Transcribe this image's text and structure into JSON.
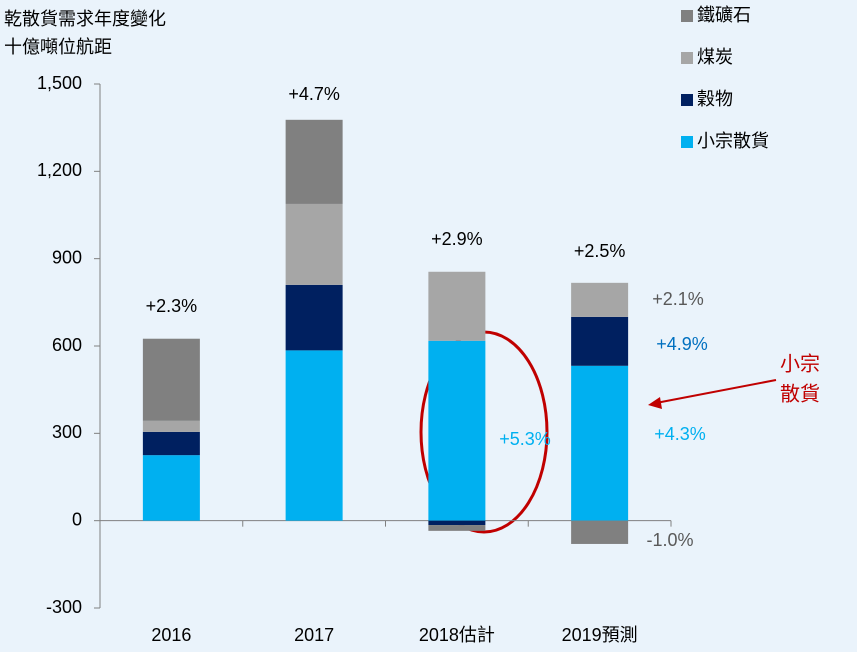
{
  "chart_data": {
    "type": "stacked_bar",
    "title": "乾散貨需求年度變化",
    "y_label": "十億噸位航距",
    "categories": [
      "2016",
      "2017",
      "2018估計",
      "2019預測"
    ],
    "series": [
      {
        "name": "小宗散貨",
        "color": "#00b0f0",
        "values": [
          225,
          585,
          618,
          532
        ]
      },
      {
        "name": "穀物",
        "color": "#002060",
        "values": [
          80,
          225,
          -15,
          168
        ]
      },
      {
        "name": "煤炭",
        "color": "#a6a6a6",
        "values": [
          38,
          278,
          237,
          117
        ]
      },
      {
        "name": "鐵礦石",
        "color": "#808080",
        "values": [
          282,
          289,
          -20,
          -80
        ]
      }
    ],
    "ylim": [
      -300,
      1500
    ],
    "yticks": [
      -300,
      0,
      300,
      600,
      900,
      {
        "value": 1200,
        "label": "1,200"
      },
      {
        "value": 1500,
        "label": "1,500"
      }
    ],
    "growth_labels": [
      "+2.3%",
      "+4.7%",
      "+2.9%",
      "+2.5%"
    ],
    "annotations": [
      "+5.3%",
      "+2.1%",
      "+4.9%",
      "+4.3%",
      "-1.0%"
    ],
    "callout": [
      "小宗",
      "散貨"
    ]
  }
}
